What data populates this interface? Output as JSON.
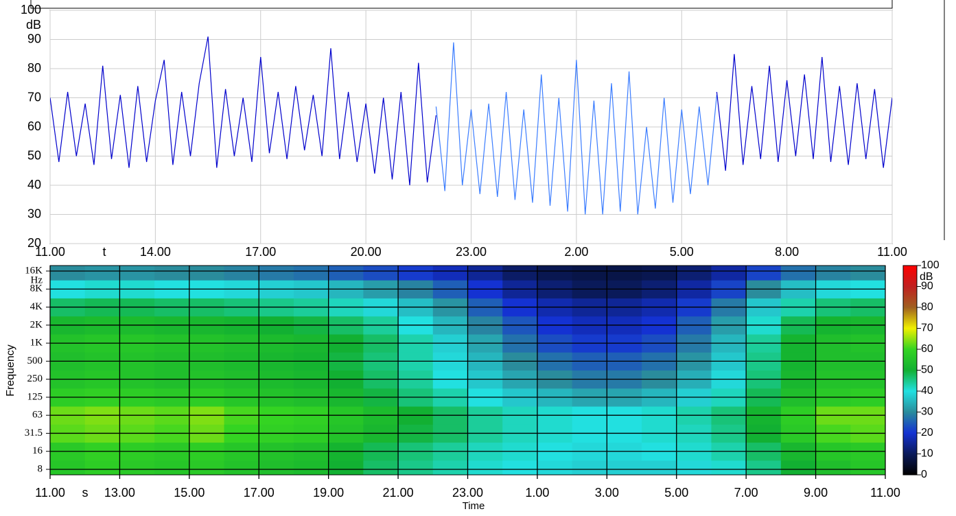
{
  "chart_data": [
    {
      "type": "line",
      "ylabel": "dB",
      "xlabel": "t",
      "ylim": [
        20,
        100
      ],
      "yticks": [
        20,
        30,
        40,
        50,
        60,
        70,
        80,
        90,
        100
      ],
      "xlim": [
        0,
        24
      ],
      "xticks": [
        {
          "value": 0,
          "label": "11.00"
        },
        {
          "value": 3,
          "label": "14.00"
        },
        {
          "value": 6,
          "label": "17.00"
        },
        {
          "value": 9,
          "label": "20.00"
        },
        {
          "value": 12,
          "label": "23.00"
        },
        {
          "value": 15,
          "label": "2.00"
        },
        {
          "value": 18,
          "label": "5.00"
        },
        {
          "value": 21,
          "label": "8.00"
        },
        {
          "value": 24,
          "label": "11.00"
        }
      ],
      "grid": true,
      "series": [
        {
          "color": "#0000cc",
          "x": [
            0,
            0.25,
            0.5,
            0.75,
            1,
            1.25,
            1.5,
            1.75,
            2,
            2.25,
            2.5,
            2.75,
            3,
            3.25,
            3.5,
            3.75,
            4,
            4.25,
            4.5,
            4.75,
            5,
            5.25,
            5.5,
            5.75,
            6,
            6.25,
            6.5,
            6.75,
            7,
            7.25,
            7.5,
            7.75,
            8,
            8.25,
            8.5,
            8.75,
            9,
            9.25,
            9.5,
            9.75,
            10,
            10.25,
            10.5,
            10.75,
            11
          ],
          "values": [
            70,
            48,
            72,
            50,
            68,
            47,
            81,
            49,
            71,
            46,
            74,
            48,
            69,
            83,
            47,
            72,
            50,
            75,
            91,
            46,
            73,
            50,
            70,
            48,
            84,
            51,
            72,
            49,
            74,
            52,
            71,
            50,
            87,
            49,
            72,
            48,
            68,
            44,
            70,
            42,
            72,
            40,
            82,
            41,
            64
          ]
        },
        {
          "color": "#3a7cff",
          "x": [
            11,
            11.25,
            11.5,
            11.75,
            12,
            12.25,
            12.5,
            12.75,
            13,
            13.25,
            13.5,
            13.75,
            14,
            14.25,
            14.5,
            14.75,
            15,
            15.25,
            15.5,
            15.75,
            16,
            16.25,
            16.5,
            16.75,
            17,
            17.25,
            17.5,
            17.75,
            18,
            18.25,
            18.5,
            18.75,
            19
          ],
          "values": [
            67,
            38,
            89,
            40,
            66,
            37,
            68,
            36,
            72,
            35,
            66,
            34,
            78,
            33,
            70,
            31,
            83,
            30,
            69,
            30,
            75,
            31,
            79,
            30,
            60,
            32,
            70,
            34,
            66,
            37,
            67,
            40,
            71
          ]
        },
        {
          "color": "#0000cc",
          "x": [
            19,
            19.25,
            19.5,
            19.75,
            20,
            20.25,
            20.5,
            20.75,
            21,
            21.25,
            21.5,
            21.75,
            22,
            22.25,
            22.5,
            22.75,
            23,
            23.25,
            23.5,
            23.75,
            24
          ],
          "values": [
            72,
            45,
            85,
            47,
            74,
            49,
            81,
            48,
            76,
            50,
            78,
            49,
            84,
            48,
            74,
            47,
            75,
            49,
            73,
            46,
            70
          ]
        }
      ]
    },
    {
      "type": "heatmap",
      "ylabel": "Frequency",
      "yunit": "Hz",
      "xlabel": "Time",
      "xunit": "s",
      "xlim": [
        0,
        24
      ],
      "xticks": [
        {
          "value": 0,
          "label": "11.00"
        },
        {
          "value": 2,
          "label": "13.00"
        },
        {
          "value": 4,
          "label": "15.00"
        },
        {
          "value": 6,
          "label": "17.00"
        },
        {
          "value": 8,
          "label": "19.00"
        },
        {
          "value": 10,
          "label": "21.00"
        },
        {
          "value": 12,
          "label": "23.00"
        },
        {
          "value": 14,
          "label": "1.00"
        },
        {
          "value": 16,
          "label": "3.00"
        },
        {
          "value": 18,
          "label": "5.00"
        },
        {
          "value": 20,
          "label": "7.00"
        },
        {
          "value": 22,
          "label": "9.00"
        },
        {
          "value": 24,
          "label": "11.00"
        }
      ],
      "bands": [
        "8",
        "16",
        "31.5",
        "63",
        "125",
        "250",
        "500",
        "1K",
        "2K",
        "4K",
        "8K",
        "16K"
      ],
      "values": [
        [
          56,
          58,
          57,
          56,
          57,
          55,
          54,
          53,
          50,
          47,
          45,
          43,
          41,
          40,
          39,
          38,
          38,
          38,
          39,
          41,
          45,
          50,
          54,
          56
        ],
        [
          57,
          59,
          58,
          57,
          58,
          56,
          55,
          54,
          51,
          48,
          46,
          44,
          42,
          41,
          40,
          39,
          39,
          40,
          41,
          43,
          47,
          52,
          56,
          57
        ],
        [
          62,
          63,
          62,
          61,
          63,
          60,
          59,
          58,
          55,
          52,
          49,
          47,
          44,
          42,
          41,
          40,
          40,
          41,
          42,
          45,
          50,
          57,
          61,
          62
        ],
        [
          63,
          64,
          63,
          62,
          64,
          61,
          60,
          59,
          56,
          53,
          50,
          47,
          44,
          42,
          41,
          40,
          40,
          41,
          43,
          46,
          51,
          58,
          63,
          63
        ],
        [
          58,
          59,
          58,
          57,
          58,
          56,
          55,
          54,
          52,
          49,
          46,
          43,
          40,
          37,
          35,
          33,
          33,
          35,
          38,
          42,
          48,
          54,
          57,
          58
        ],
        [
          55,
          56,
          55,
          54,
          55,
          54,
          53,
          52,
          50,
          47,
          44,
          40,
          37,
          33,
          30,
          28,
          28,
          30,
          34,
          39,
          46,
          52,
          55,
          55
        ],
        [
          54,
          55,
          55,
          54,
          54,
          53,
          52,
          51,
          49,
          46,
          43,
          39,
          35,
          30,
          27,
          25,
          25,
          27,
          31,
          37,
          45,
          51,
          54,
          54
        ],
        [
          55,
          56,
          56,
          55,
          55,
          54,
          53,
          52,
          50,
          47,
          43,
          38,
          33,
          27,
          23,
          21,
          21,
          23,
          28,
          35,
          44,
          51,
          54,
          55
        ],
        [
          52,
          53,
          53,
          52,
          52,
          51,
          50,
          49,
          47,
          44,
          40,
          35,
          29,
          24,
          20,
          18,
          18,
          20,
          25,
          32,
          41,
          48,
          51,
          52
        ],
        [
          47,
          48,
          48,
          47,
          47,
          46,
          45,
          44,
          42,
          39,
          36,
          31,
          25,
          20,
          17,
          15,
          15,
          17,
          21,
          28,
          37,
          43,
          46,
          47
        ],
        [
          40,
          41,
          41,
          40,
          40,
          39,
          38,
          37,
          35,
          32,
          29,
          25,
          20,
          15,
          12,
          10,
          10,
          12,
          16,
          22,
          30,
          36,
          39,
          40
        ],
        [
          30,
          31,
          31,
          30,
          30,
          29,
          28,
          27,
          25,
          23,
          21,
          18,
          15,
          11,
          9,
          8,
          8,
          9,
          12,
          16,
          22,
          27,
          29,
          30
        ]
      ],
      "colorbar_label": "dB",
      "clim": [
        0,
        100
      ],
      "cticks": [
        0,
        10,
        20,
        30,
        40,
        50,
        60,
        70,
        80,
        90,
        100
      ],
      "colorscale": [
        [
          0,
          "#000000"
        ],
        [
          10,
          "#0a1a5a"
        ],
        [
          20,
          "#1432d2"
        ],
        [
          30,
          "#2a8c9c"
        ],
        [
          40,
          "#22e0e0"
        ],
        [
          50,
          "#12b032"
        ],
        [
          60,
          "#34d422"
        ],
        [
          70,
          "#f0f000"
        ],
        [
          80,
          "#a06020"
        ],
        [
          90,
          "#c02020"
        ],
        [
          100,
          "#ff0000"
        ]
      ]
    }
  ]
}
